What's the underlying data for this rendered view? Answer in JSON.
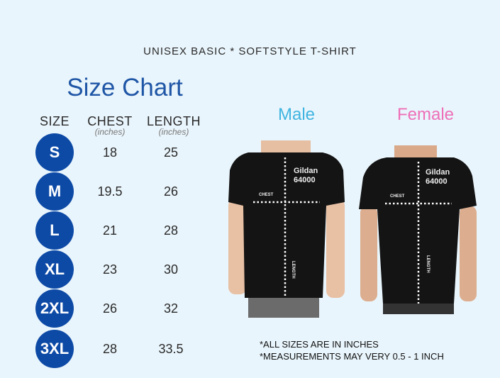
{
  "header": {
    "title": "UNISEX BASIC * SOFTSTYLE T-SHIRT"
  },
  "chart": {
    "title": "Size Chart",
    "columns": [
      {
        "label": "SIZE",
        "unit": ""
      },
      {
        "label": "CHEST",
        "unit": "(inches)"
      },
      {
        "label": "LENGTH",
        "unit": "(inches)"
      }
    ],
    "rows": [
      {
        "size": "S",
        "chest": "18",
        "length": "25"
      },
      {
        "size": "M",
        "chest": "19.5",
        "length": "26"
      },
      {
        "size": "L",
        "chest": "21",
        "length": "28"
      },
      {
        "size": "XL",
        "chest": "23",
        "length": "30"
      },
      {
        "size": "2XL",
        "chest": "26",
        "length": "32"
      },
      {
        "size": "3XL",
        "chest": "28",
        "length": "33.5"
      }
    ]
  },
  "images": {
    "male": {
      "label": "Male",
      "color": "#3fb4e0",
      "brand": "Gildan",
      "model": "64000",
      "chest": "CHEST",
      "length": "LENGTH"
    },
    "female": {
      "label": "Female",
      "color": "#ee6fb8",
      "brand": "Gildan",
      "model": "64000",
      "chest": "CHEST",
      "length": "LENGTH"
    }
  },
  "notes": [
    "*ALL SIZES ARE IN INCHES",
    "*MEASUREMENTS MAY VERY 0.5 - 1 INCH"
  ],
  "colors": {
    "background": "#e9f5fc",
    "accent": "#0d4aa6",
    "title": "#1f56a6"
  }
}
